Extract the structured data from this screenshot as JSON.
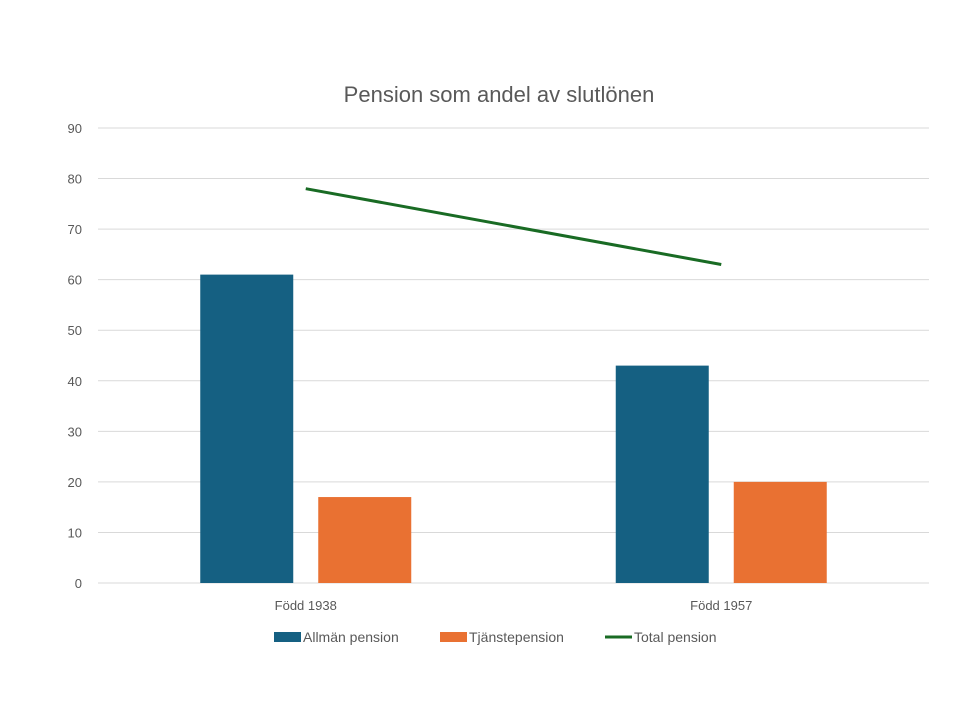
{
  "chart_data": {
    "type": "bar",
    "title": "Pension som andel av slutlönen",
    "xlabel": "",
    "ylabel": "",
    "ylim": [
      0,
      90
    ],
    "yticks": [
      0,
      10,
      20,
      30,
      40,
      50,
      60,
      70,
      80,
      90
    ],
    "grid": true,
    "legend_position": "bottom",
    "categories": [
      "Född 1938",
      "Född 1957"
    ],
    "series": [
      {
        "name": "Allmän pension",
        "type": "bar",
        "color": "#156082",
        "values": [
          61,
          43
        ]
      },
      {
        "name": "Tjänstepension",
        "type": "bar",
        "color": "#E97132",
        "values": [
          17,
          20
        ]
      },
      {
        "name": "Total pension",
        "type": "line",
        "color": "#196B24",
        "values": [
          78,
          63
        ]
      }
    ]
  }
}
